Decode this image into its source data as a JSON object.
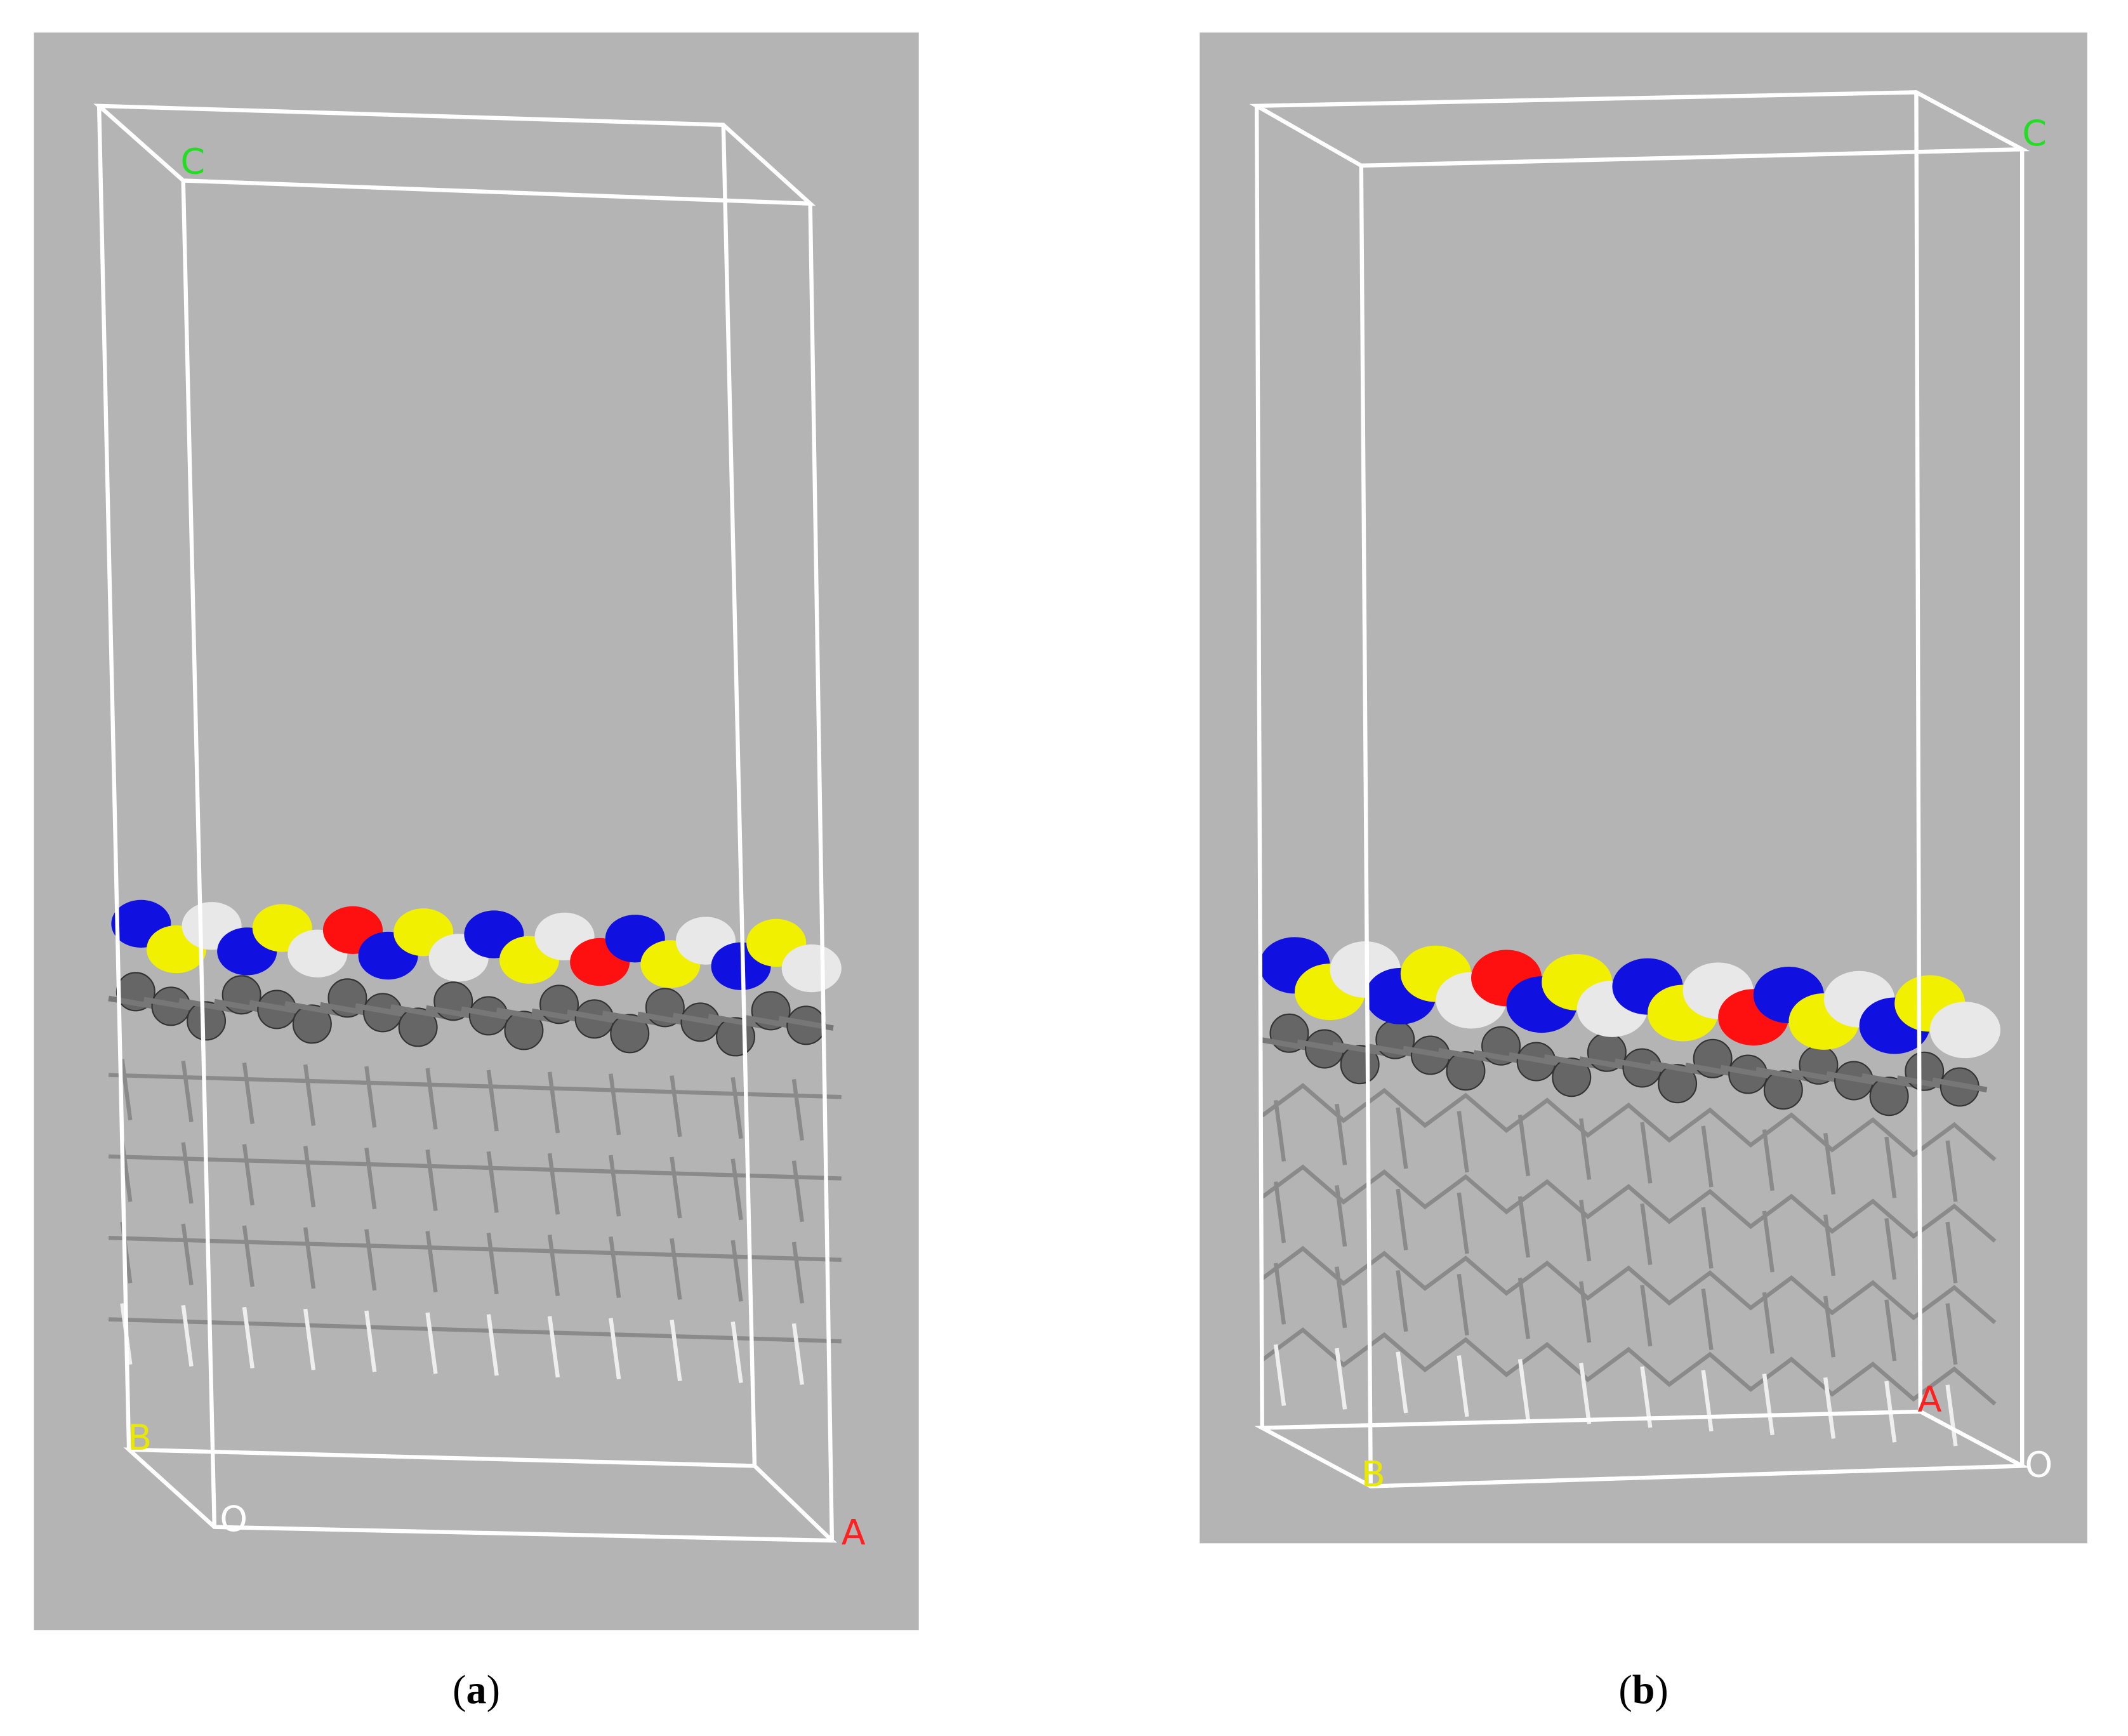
{
  "panels": [
    {
      "labels": {
        "c": "C",
        "b": "B",
        "o": "O",
        "a": "A"
      },
      "caption": [
        "(",
        "a",
        ")"
      ]
    },
    {
      "labels": {
        "c": "C",
        "b": "B",
        "o": "O",
        "a": "A"
      },
      "caption": [
        "(",
        "b",
        ")"
      ]
    }
  ]
}
